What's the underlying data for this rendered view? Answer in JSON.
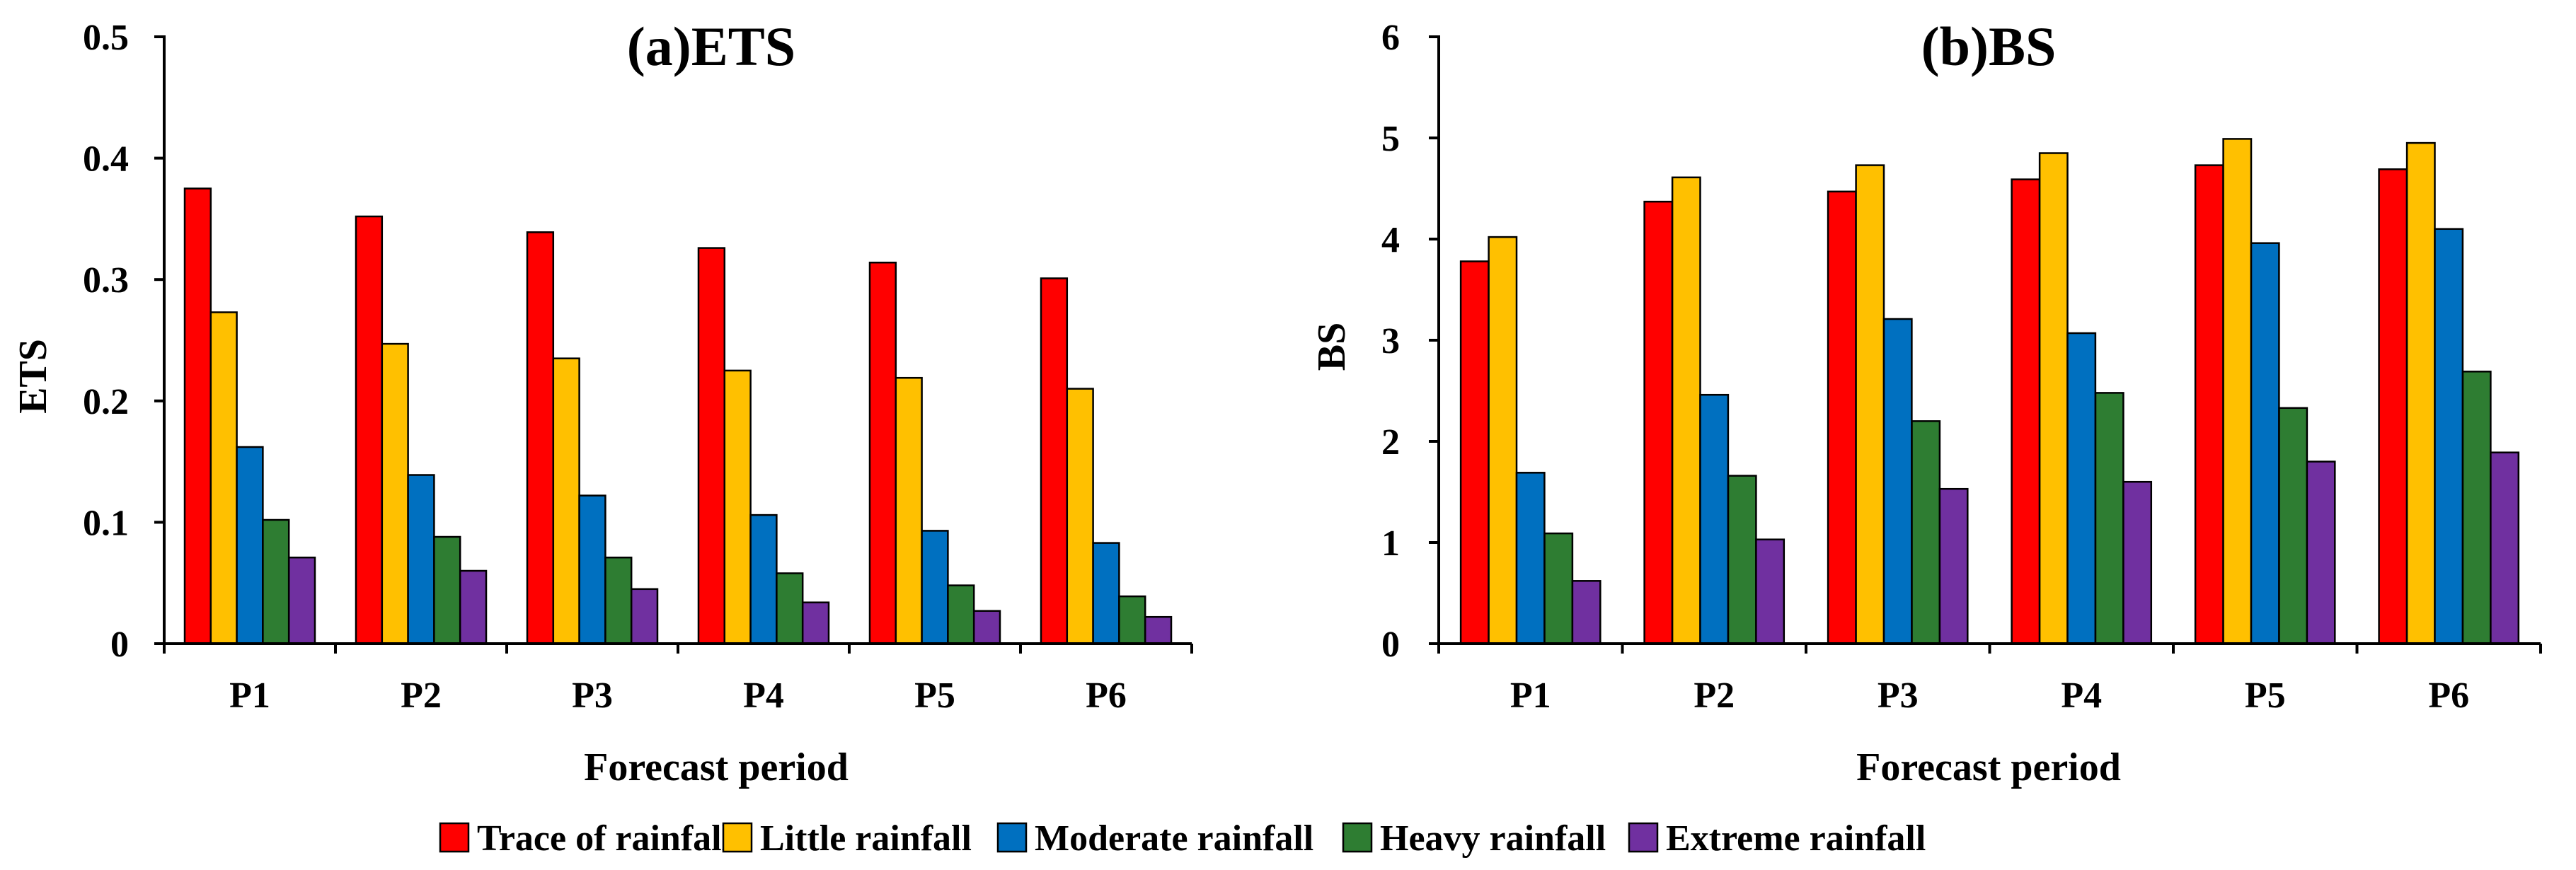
{
  "chart_data": [
    {
      "type": "bar",
      "title": "(a)ETS",
      "xlabel": "Forecast period",
      "ylabel": "ETS",
      "ylim": [
        0,
        0.5
      ],
      "yticks": [
        0,
        0.1,
        0.2,
        0.3,
        0.4,
        0.5
      ],
      "ytick_labels": [
        "0",
        "0.1",
        "0.2",
        "0.3",
        "0.4",
        "0.5"
      ],
      "categories": [
        "P1",
        "P2",
        "P3",
        "P4",
        "P5",
        "P6"
      ],
      "series": [
        {
          "name": "Trace of rainfall",
          "values": [
            0.375,
            0.352,
            0.339,
            0.326,
            0.314,
            0.301
          ]
        },
        {
          "name": "Little rainfall",
          "values": [
            0.273,
            0.247,
            0.235,
            0.225,
            0.219,
            0.21
          ]
        },
        {
          "name": "Moderate rainfall",
          "values": [
            0.162,
            0.139,
            0.122,
            0.106,
            0.093,
            0.083
          ]
        },
        {
          "name": "Heavy rainfall",
          "values": [
            0.102,
            0.088,
            0.071,
            0.058,
            0.048,
            0.039
          ]
        },
        {
          "name": "Extreme rainfall",
          "values": [
            0.071,
            0.06,
            0.045,
            0.034,
            0.027,
            0.022
          ]
        }
      ]
    },
    {
      "type": "bar",
      "title": "(b)BS",
      "xlabel": "Forecast period",
      "ylabel": "BS",
      "ylim": [
        0,
        6
      ],
      "yticks": [
        0,
        1,
        2,
        3,
        4,
        5,
        6
      ],
      "ytick_labels": [
        "0",
        "1",
        "2",
        "3",
        "4",
        "5",
        "6"
      ],
      "categories": [
        "P1",
        "P2",
        "P3",
        "P4",
        "P5",
        "P6"
      ],
      "series": [
        {
          "name": "Trace of rainfall",
          "values": [
            3.78,
            4.37,
            4.47,
            4.59,
            4.73,
            4.69
          ]
        },
        {
          "name": "Little rainfall",
          "values": [
            4.02,
            4.61,
            4.73,
            4.85,
            4.99,
            4.95
          ]
        },
        {
          "name": "Moderate rainfall",
          "values": [
            1.69,
            2.46,
            3.21,
            3.07,
            3.96,
            4.1
          ]
        },
        {
          "name": "Heavy rainfall",
          "values": [
            1.09,
            1.66,
            2.2,
            2.48,
            2.33,
            2.69
          ]
        },
        {
          "name": "Extreme rainfall",
          "values": [
            0.62,
            1.03,
            1.53,
            1.6,
            1.8,
            1.89
          ]
        }
      ]
    }
  ],
  "legend": {
    "position": "bottom",
    "items": [
      {
        "label": "Trace of rainfall",
        "color": "#ff0000"
      },
      {
        "label": "Little rainfall",
        "color": "#ffc000"
      },
      {
        "label": "Moderate rainfall",
        "color": "#0070c0"
      },
      {
        "label": "Heavy rainfall",
        "color": "#2e7d32"
      },
      {
        "label": "Extreme rainfall",
        "color": "#7030a0"
      }
    ]
  }
}
